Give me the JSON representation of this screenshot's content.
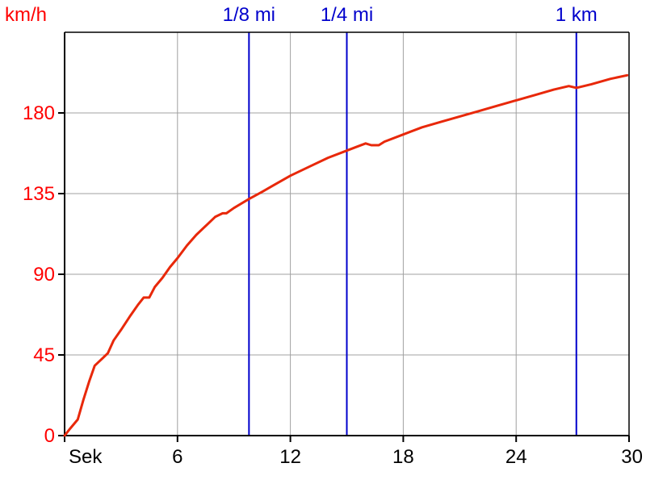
{
  "chart_data": {
    "type": "line",
    "title": "",
    "xlabel": "Sek",
    "ylabel": "km/h",
    "xlim": [
      0,
      30
    ],
    "ylim": [
      0,
      225
    ],
    "grid": true,
    "x_ticks": [
      6,
      12,
      18,
      24,
      30
    ],
    "x_tick_labels": [
      "6",
      "12",
      "18",
      "24",
      "30"
    ],
    "y_ticks": [
      0,
      45,
      90,
      135,
      180
    ],
    "y_tick_labels": [
      "0",
      "45",
      "90",
      "135",
      "180"
    ],
    "distance_markers": [
      {
        "label": "1/8 mi",
        "x": 9.8
      },
      {
        "label": "1/4 mi",
        "x": 15
      },
      {
        "label": "1 km",
        "x": 27.2
      }
    ],
    "colors": {
      "series": "#e8280a",
      "markers": "#0000cc",
      "ylabels": "#ff0000",
      "xlabels": "#000000",
      "grid": "#a0a0a0",
      "axes": "#000000"
    },
    "series": [
      {
        "x": [
          0,
          0.3,
          0.7,
          1.0,
          1.3,
          1.6,
          1.9,
          2.3,
          2.6,
          3.0,
          3.5,
          3.9,
          4.2,
          4.5,
          4.8,
          5.2,
          5.6,
          6.0,
          6.5,
          7.0,
          7.5,
          8.0,
          8.4,
          8.6,
          9.0,
          9.8,
          10.5,
          11.0,
          12.0,
          13.0,
          14.0,
          15.0,
          15.5,
          16.0,
          16.3,
          16.7,
          17.0,
          18.0,
          19.0,
          20.0,
          21.0,
          22.0,
          23.0,
          24.0,
          25.0,
          26.0,
          26.8,
          27.2,
          27.6,
          28.0,
          29.0,
          29.9
        ],
        "y": [
          0,
          4,
          9,
          20,
          30,
          39,
          42,
          46,
          53,
          59,
          67,
          73,
          77,
          77,
          83,
          88,
          94,
          99,
          106,
          112,
          117,
          122,
          124,
          124,
          127,
          132,
          136,
          139,
          145,
          150,
          155,
          159,
          161,
          163,
          162,
          162,
          164,
          168,
          172,
          175,
          178,
          181,
          184,
          187,
          190,
          193,
          195,
          194,
          195,
          196,
          199,
          201
        ]
      }
    ]
  }
}
